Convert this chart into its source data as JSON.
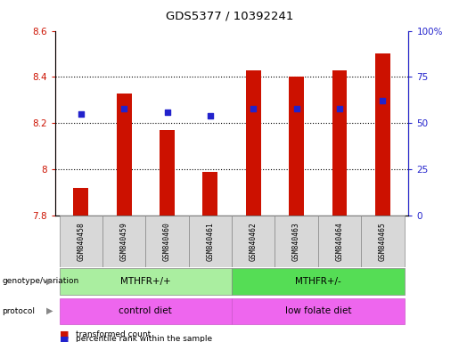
{
  "title": "GDS5377 / 10392241",
  "samples": [
    "GSM840458",
    "GSM840459",
    "GSM840460",
    "GSM840461",
    "GSM840462",
    "GSM840463",
    "GSM840464",
    "GSM840465"
  ],
  "bar_values": [
    7.92,
    8.33,
    8.17,
    7.99,
    8.43,
    8.4,
    8.43,
    8.5
  ],
  "dot_values_pct": [
    55,
    58,
    56,
    54,
    58,
    58,
    58,
    62
  ],
  "ymin": 7.8,
  "ymax": 8.6,
  "bar_color": "#cc1100",
  "dot_color": "#2222cc",
  "bar_base": 7.8,
  "genotype_labels": [
    [
      "MTHFR+/+",
      0,
      3
    ],
    [
      "MTHFR+/-",
      4,
      7
    ]
  ],
  "protocol_labels": [
    [
      "control diet",
      0,
      3
    ],
    [
      "low folate diet",
      4,
      7
    ]
  ],
  "genotype_color_left": "#aaeea0",
  "genotype_color_right": "#55dd55",
  "protocol_color": "#ee66ee",
  "right_yticks": [
    0,
    25,
    50,
    75,
    100
  ],
  "right_yticklabels": [
    "0",
    "25",
    "50",
    "75",
    "100%"
  ],
  "left_yticks": [
    7.8,
    8.0,
    8.2,
    8.4,
    8.6
  ],
  "left_yticklabels": [
    "7.8",
    "8",
    "8.2",
    "8.4",
    "8.6"
  ],
  "grid_lines": [
    8.0,
    8.2,
    8.4
  ],
  "bar_width": 0.35
}
